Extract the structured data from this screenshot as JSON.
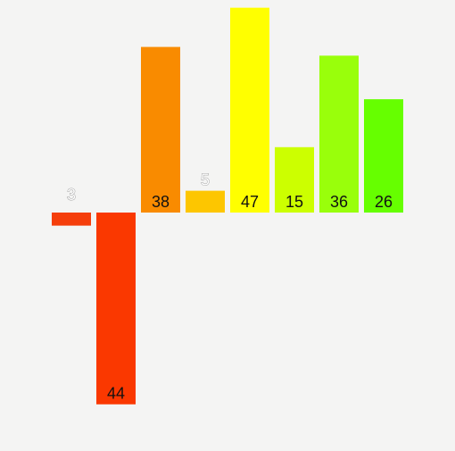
{
  "chart_data": {
    "type": "bar",
    "title": "",
    "xlabel": "",
    "ylabel": "",
    "grid": false,
    "legend": "none",
    "ylim": [
      -44,
      47
    ],
    "values": [
      -3,
      -44,
      38,
      5,
      47,
      15,
      36,
      26
    ],
    "labels": [
      "3",
      "44",
      "38",
      "5",
      "47",
      "15",
      "36",
      "26"
    ],
    "colors": [
      "#f53e0b",
      "#fa3800",
      "#f98b00",
      "#fdc600",
      "#ffff00",
      "#ccff00",
      "#99ff0b",
      "#66ff00"
    ],
    "label_colors": [
      "#ffffff",
      "#111111",
      "#111111",
      "#ffffff",
      "#111111",
      "#111111",
      "#111111",
      "#111111"
    ]
  }
}
